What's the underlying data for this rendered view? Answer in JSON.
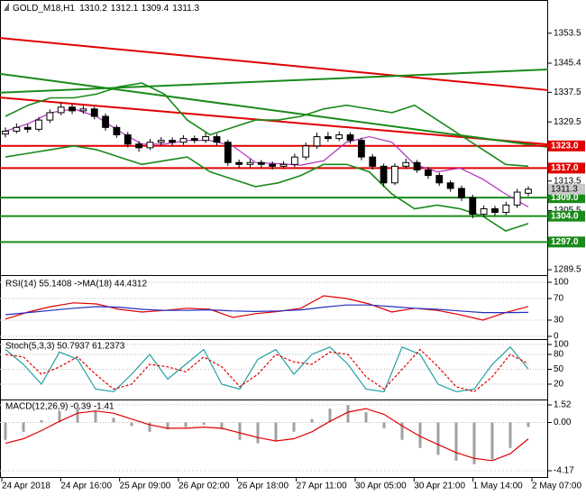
{
  "chart_data": [
    {
      "type": "candlestick",
      "title": "GOLD_M18,H1",
      "header_values": [
        1310.2,
        1312.1,
        1309.4,
        1311.3
      ],
      "ylim": [
        1288.3,
        1362
      ],
      "yticks": [
        1353.5,
        1345.4,
        1337.5,
        1329.5,
        1313.5,
        1305.5,
        1289.5
      ],
      "ohlc": [
        [
          1326.2,
          1328.0,
          1325.3,
          1327
        ],
        [
          1327,
          1329.1,
          1326.4,
          1328
        ],
        [
          1328,
          1328.9,
          1326.6,
          1327.5
        ],
        [
          1327.5,
          1330.8,
          1326.9,
          1330
        ],
        [
          1330,
          1332.9,
          1329.2,
          1332
        ],
        [
          1332,
          1334.6,
          1331.3,
          1333.5
        ],
        [
          1333.5,
          1334.2,
          1331.6,
          1332.5
        ],
        [
          1332.5,
          1333.9,
          1331.7,
          1333
        ],
        [
          1333,
          1333.6,
          1330.2,
          1331
        ],
        [
          1331,
          1331.8,
          1327.1,
          1328
        ],
        [
          1328,
          1328.7,
          1325.2,
          1326
        ],
        [
          1326,
          1326.8,
          1322.6,
          1323.5
        ],
        [
          1323.5,
          1324.3,
          1321.4,
          1322.5
        ],
        [
          1322.5,
          1324.9,
          1321.9,
          1324
        ],
        [
          1324,
          1325.4,
          1323.2,
          1324.5
        ],
        [
          1324.5,
          1325.3,
          1323.1,
          1324
        ],
        [
          1324,
          1325.9,
          1323.3,
          1325
        ],
        [
          1325,
          1325.8,
          1323.7,
          1324.5
        ],
        [
          1324.5,
          1326.6,
          1323.8,
          1325.5
        ],
        [
          1325.5,
          1326.3,
          1323.1,
          1324
        ],
        [
          1324,
          1324.7,
          1317.6,
          1318.5
        ],
        [
          1318.5,
          1319.3,
          1317.1,
          1318
        ],
        [
          1318,
          1319.4,
          1317.2,
          1318.5
        ],
        [
          1318.5,
          1319.2,
          1317.1,
          1318
        ],
        [
          1318,
          1318.8,
          1316.6,
          1317.5
        ],
        [
          1317.5,
          1318.9,
          1316.8,
          1318
        ],
        [
          1318,
          1320.9,
          1317.3,
          1320
        ],
        [
          1320,
          1323.9,
          1319.2,
          1323
        ],
        [
          1323,
          1326.6,
          1322.2,
          1325.5
        ],
        [
          1325.5,
          1326.8,
          1324.1,
          1325
        ],
        [
          1325,
          1326.9,
          1324.3,
          1326
        ],
        [
          1326,
          1326.7,
          1323.6,
          1324.5
        ],
        [
          1324.5,
          1325.2,
          1319.1,
          1320
        ],
        [
          1320,
          1320.8,
          1316.6,
          1317.5
        ],
        [
          1317.5,
          1318.2,
          1311.9,
          1313
        ],
        [
          1313,
          1318.3,
          1312.4,
          1317.5
        ],
        [
          1317.5,
          1319.6,
          1316.8,
          1318.5
        ],
        [
          1318.5,
          1319.2,
          1315.7,
          1316.5
        ],
        [
          1316.5,
          1317.3,
          1314.1,
          1315
        ],
        [
          1315,
          1315.8,
          1312.2,
          1313
        ],
        [
          1313,
          1313.7,
          1310.6,
          1311.5
        ],
        [
          1311.5,
          1312.3,
          1308.1,
          1309
        ],
        [
          1309,
          1309.8,
          1303.4,
          1304.5
        ],
        [
          1304.5,
          1306.9,
          1303.8,
          1306
        ],
        [
          1306,
          1306.8,
          1304.1,
          1305
        ],
        [
          1305,
          1307.9,
          1304.3,
          1307
        ],
        [
          1307,
          1311.4,
          1306.2,
          1310.5
        ],
        [
          1310.2,
          1312.1,
          1309.4,
          1311.3
        ]
      ],
      "bollinger": {
        "color": "#1a8a1a",
        "upper": [
          1331,
          1334,
          1336,
          1336,
          1337,
          1339,
          1340,
          1337,
          1330,
          1326,
          1328,
          1330,
          1330,
          1331,
          1333,
          1334,
          1333,
          1332,
          1334,
          1330,
          1326,
          1322,
          1318,
          1317.5
        ],
        "lower": [
          1320,
          1321,
          1322,
          1323,
          1322,
          1320,
          1318,
          1319,
          1320,
          1316,
          1314,
          1312,
          1313,
          1315,
          1318,
          1318,
          1316,
          1310,
          1306,
          1307,
          1306,
          1304,
          1300,
          1302
        ]
      },
      "ma": {
        "color": "#b030c0",
        "values": [
          1327,
          1329,
          1332,
          1333,
          1331,
          1327,
          1323.5,
          1323.5,
          1324.5,
          1324.5,
          1323,
          1318.5,
          1318.2,
          1317.8,
          1319,
          1324,
          1325.5,
          1324,
          1318,
          1316,
          1317,
          1314,
          1310,
          1306.5
        ]
      },
      "trendlines": [
        {
          "color": "#e00000",
          "values": [
            1352.2,
            1338.1
          ]
        },
        {
          "color": "#e00000",
          "values": [
            1336.1,
            1323.4
          ]
        },
        {
          "color": "#1a8a1a",
          "values": [
            1337.4,
            1343.7
          ]
        },
        {
          "color": "#1a8a1a",
          "values": [
            1342.5,
            1322.7
          ]
        }
      ],
      "levels": {
        "values": [
          1323,
          1317,
          1309,
          1304,
          1297
        ],
        "value_labels": [
          "1323.0",
          "1317.0",
          "1309.0",
          "1304.0",
          "1297.0"
        ],
        "colors": [
          "#e00000",
          "#e00000",
          "#1a8a1a",
          "#1a8a1a",
          "#1a8a1a"
        ]
      },
      "last_price": 1311.3
    },
    {
      "type": "line",
      "title": "RSI(14) 55.1408 ->MA(18) 44.4312",
      "ylim": [
        0,
        100
      ],
      "yticks": [
        100,
        70,
        30,
        0
      ],
      "series": [
        {
          "color": "#e00000",
          "values": [
            32,
            45,
            55,
            62,
            60,
            50,
            45,
            48,
            52,
            50,
            35,
            42,
            46,
            52,
            75,
            70,
            60,
            45,
            52,
            48,
            40,
            30,
            44,
            55.1
          ]
        },
        {
          "color": "#2030c0",
          "values": [
            40,
            44,
            48,
            52,
            55,
            54,
            50,
            48,
            48,
            49,
            47,
            46,
            47,
            49,
            54,
            58,
            58,
            55,
            52,
            50,
            47,
            44,
            44,
            44.4
          ]
        }
      ]
    },
    {
      "type": "line",
      "title": "Stoch(5,3,3) 50.7937 61.2373",
      "ylim": [
        0,
        100
      ],
      "yticks": [
        100,
        80,
        50,
        20
      ],
      "series": [
        {
          "color": "#20a0a0",
          "values": [
            90,
            60,
            20,
            85,
            70,
            10,
            5,
            40,
            80,
            30,
            60,
            90,
            20,
            10,
            70,
            90,
            40,
            80,
            95,
            60,
            10,
            5,
            95,
            80,
            20,
            5,
            10,
            60,
            95,
            50.8
          ]
        },
        {
          "color": "#e00000",
          "style": "dashed",
          "values": [
            80,
            75,
            40,
            55,
            75,
            40,
            10,
            20,
            60,
            55,
            45,
            75,
            55,
            15,
            40,
            80,
            65,
            60,
            85,
            80,
            35,
            10,
            50,
            90,
            55,
            15,
            5,
            35,
            80,
            61.2
          ]
        }
      ]
    },
    {
      "type": "macd",
      "title": "MACD(12,26,9) -0.39 -1.41",
      "ylim": [
        -4.17,
        1.52
      ],
      "yticks": [
        1.52,
        {
          "value": 0,
          "label": "0.00"
        },
        -4.17
      ],
      "histogram": {
        "color": "#a0a0a0",
        "values": [
          -1.5,
          -0.8,
          0.2,
          1.0,
          1.3,
          1.0,
          0.4,
          -0.3,
          -0.8,
          -0.6,
          -0.4,
          -0.2,
          -0.6,
          -1.5,
          -1.8,
          -1.6,
          -0.8,
          0.3,
          1.2,
          1.5,
          0.9,
          -0.5,
          -1.5,
          -2.2,
          -2.8,
          -3.3,
          -3.6,
          -3.2,
          -2.2,
          -0.39
        ]
      },
      "signal": {
        "color": "#e00000",
        "values": [
          -1.8,
          -1.4,
          -0.7,
          0.1,
          0.8,
          1.0,
          0.8,
          0.3,
          -0.2,
          -0.5,
          -0.5,
          -0.4,
          -0.5,
          -0.9,
          -1.3,
          -1.6,
          -1.4,
          -0.8,
          0.1,
          0.9,
          1.2,
          0.7,
          -0.3,
          -1.2,
          -1.9,
          -2.6,
          -3.1,
          -3.3,
          -2.7,
          -1.41
        ]
      },
      "x_labels": [
        "24 Apr 2018",
        "24 Apr 16:00",
        "25 Apr 09:00",
        "26 Apr 02:00",
        "26 Apr 18:00",
        "27 Apr 11:00",
        "30 Apr 05:00",
        "30 Apr 21:00",
        "1 May 14:00",
        "2 May 07:00"
      ]
    }
  ]
}
